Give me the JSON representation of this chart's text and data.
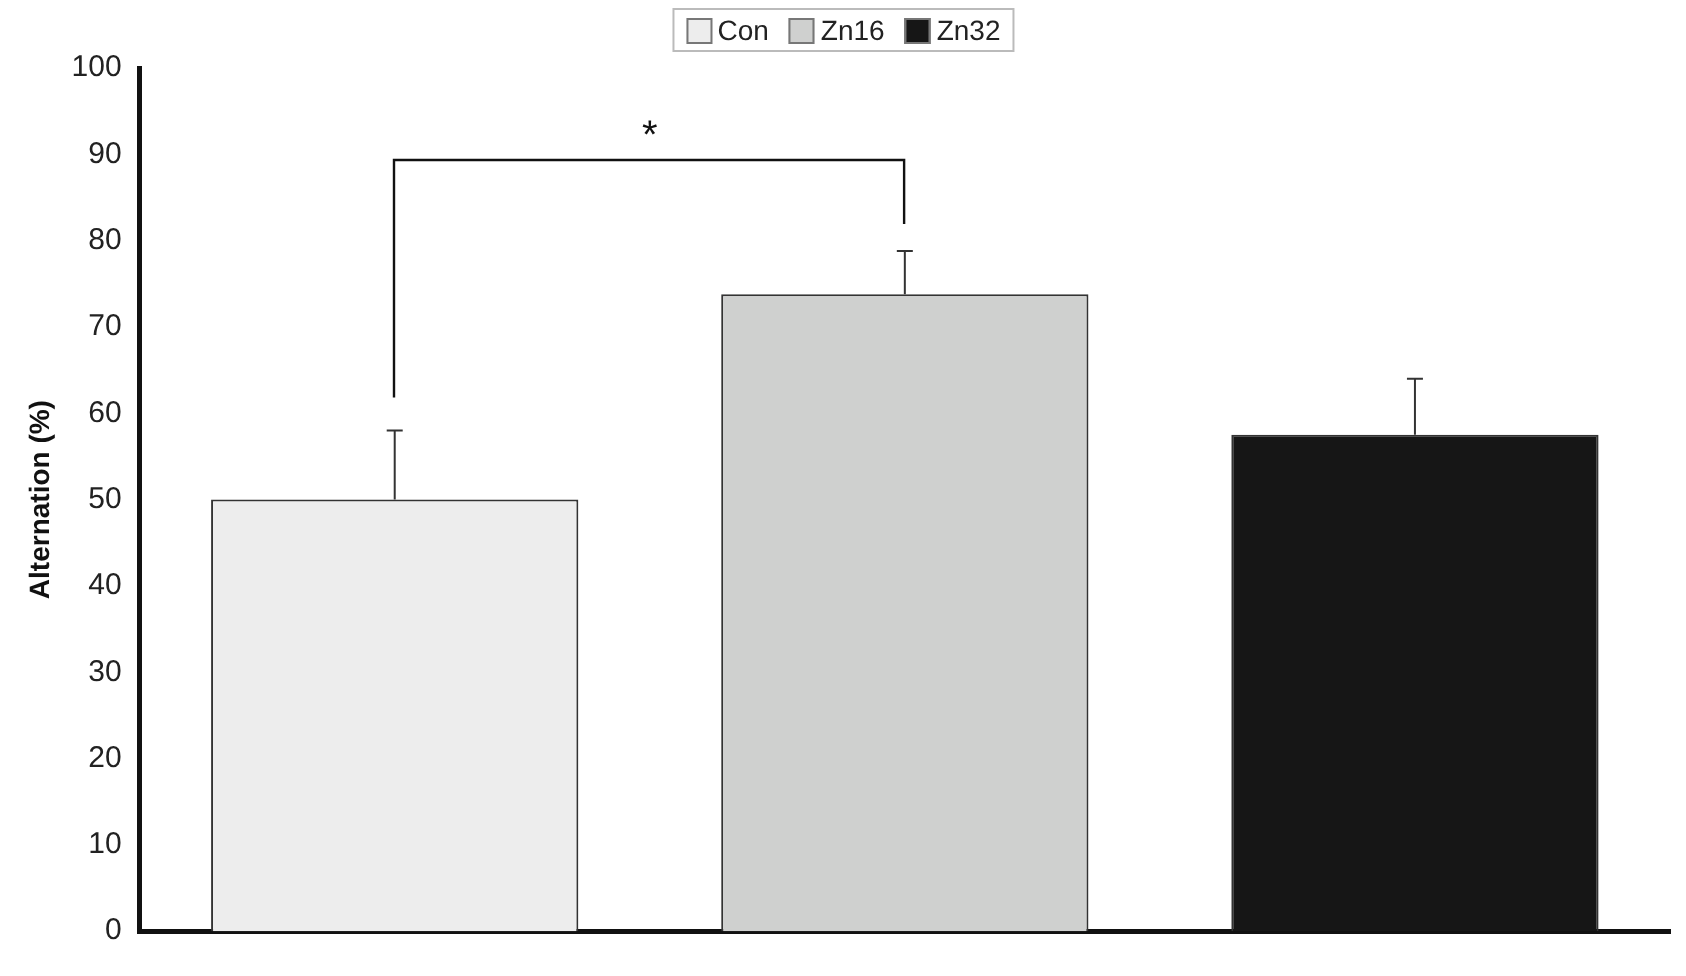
{
  "chart_data": {
    "type": "bar",
    "ylabel": "Alternation (%)",
    "categories": [
      null,
      null,
      null
    ],
    "series": [
      {
        "name": "Con",
        "color": "#ededed",
        "values": [
          50,
          null,
          null
        ],
        "errors": [
          8,
          null,
          null
        ]
      },
      {
        "name": "Zn16",
        "color": "#cfd0cf",
        "values": [
          null,
          73.8,
          null
        ],
        "errors": [
          null,
          5,
          null
        ]
      },
      {
        "name": "Zn32",
        "color": "#161616",
        "values": [
          null,
          null,
          57.5
        ],
        "errors": [
          null,
          null,
          6.5
        ]
      }
    ],
    "ylim": [
      0,
      100
    ],
    "yticks": [
      0,
      10,
      20,
      30,
      40,
      50,
      60,
      70,
      80,
      90,
      100
    ],
    "grid": false,
    "legend": "top",
    "annotations": [
      "*"
    ]
  }
}
